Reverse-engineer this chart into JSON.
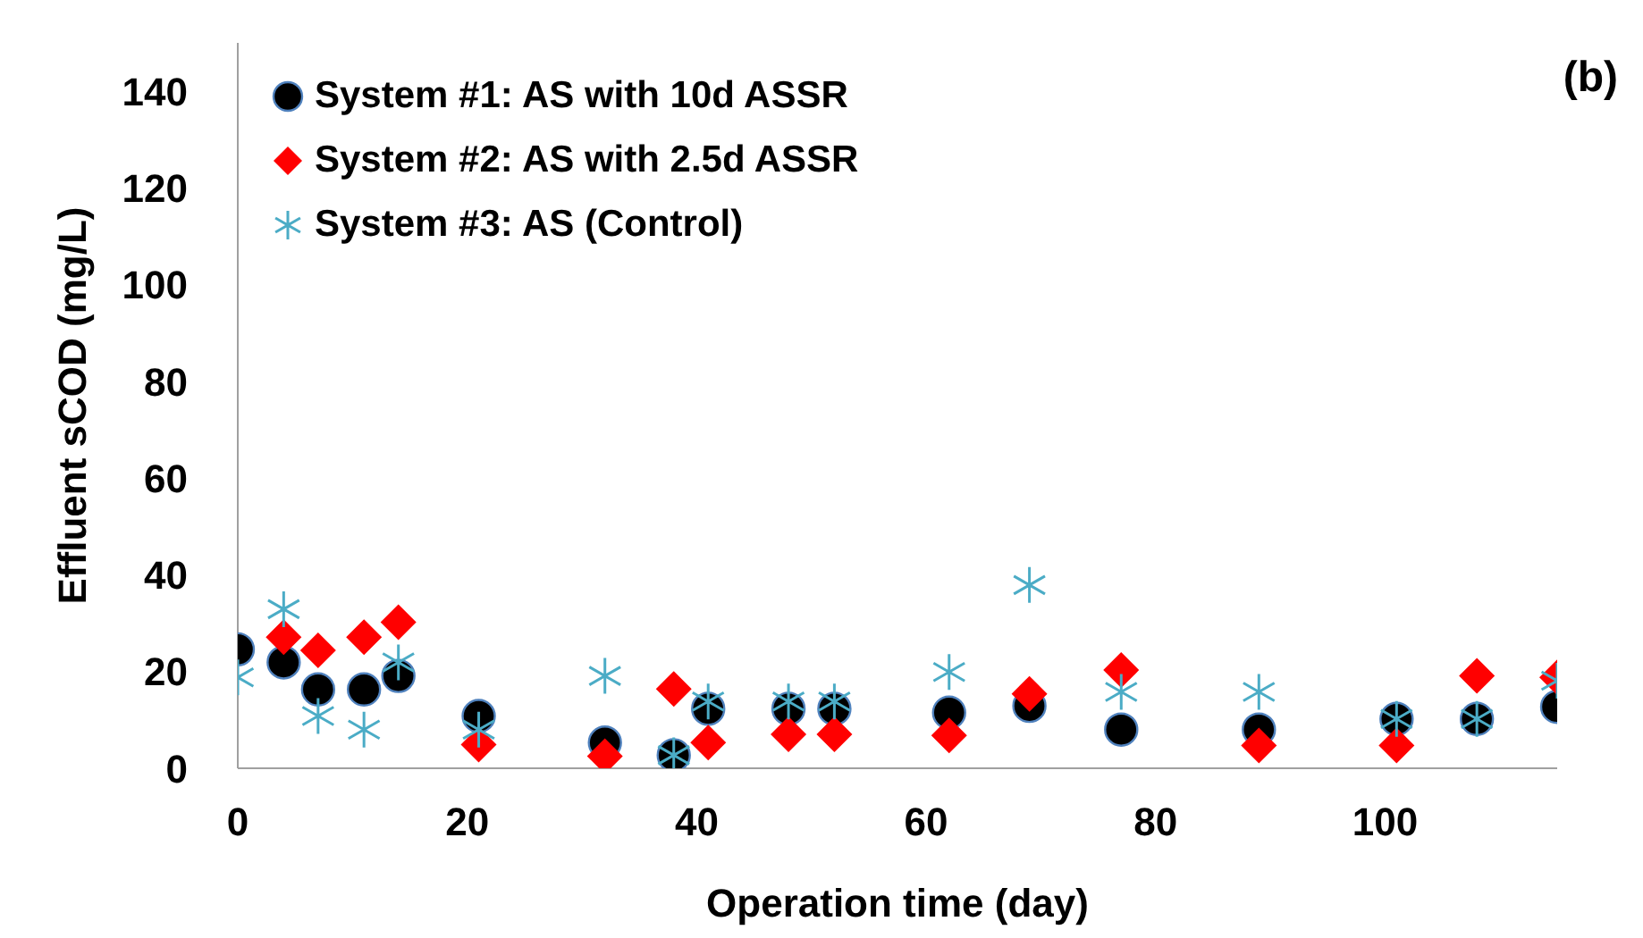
{
  "chart_data": {
    "type": "scatter",
    "xlabel": "Operation time (day)",
    "ylabel": "Effluent sCOD (mg/L)",
    "annotations": [
      "(b)"
    ],
    "x": [
      0,
      4,
      7,
      11,
      14,
      21,
      32,
      38,
      41,
      48,
      52,
      62,
      69,
      77,
      89,
      101,
      108,
      115
    ],
    "series": [
      {
        "name": "System #1: AS with 10d ASSR",
        "color": "#000000",
        "marker": "circle",
        "values": [
          24.6,
          21.9,
          16.3,
          16.3,
          19.1,
          10.8,
          5.3,
          2.7,
          12.3,
          12.3,
          12.3,
          11.5,
          12.9,
          8.0,
          8.0,
          10.2,
          10.2,
          12.7
        ]
      },
      {
        "name": "System #2: AS with 2.5d ASSR",
        "color": "#ff0000",
        "marker": "diamond",
        "values": [
          null,
          27.1,
          24.4,
          27.1,
          30.2,
          4.9,
          2.5,
          16.4,
          5.3,
          7.0,
          7.0,
          6.8,
          15.4,
          20.3,
          4.7,
          4.7,
          19.1,
          18.8
        ]
      },
      {
        "name": "System #3: AS (Control)",
        "color": "#4bacc6",
        "marker": "cross",
        "values": [
          18.8,
          32.9,
          10.8,
          8.0,
          21.9,
          8.0,
          19.1,
          2.7,
          13.8,
          13.8,
          13.8,
          19.9,
          37.9,
          15.8,
          15.8,
          10.2,
          10.2,
          18.1
        ]
      }
    ],
    "xlim": [
      0,
      115
    ],
    "xticks": [
      0,
      20,
      40,
      60,
      80,
      100
    ],
    "ylim": [
      0,
      150
    ],
    "yticks": [
      0,
      20,
      40,
      60,
      80,
      100,
      120,
      140
    ],
    "grid": false,
    "legend": "top left"
  }
}
